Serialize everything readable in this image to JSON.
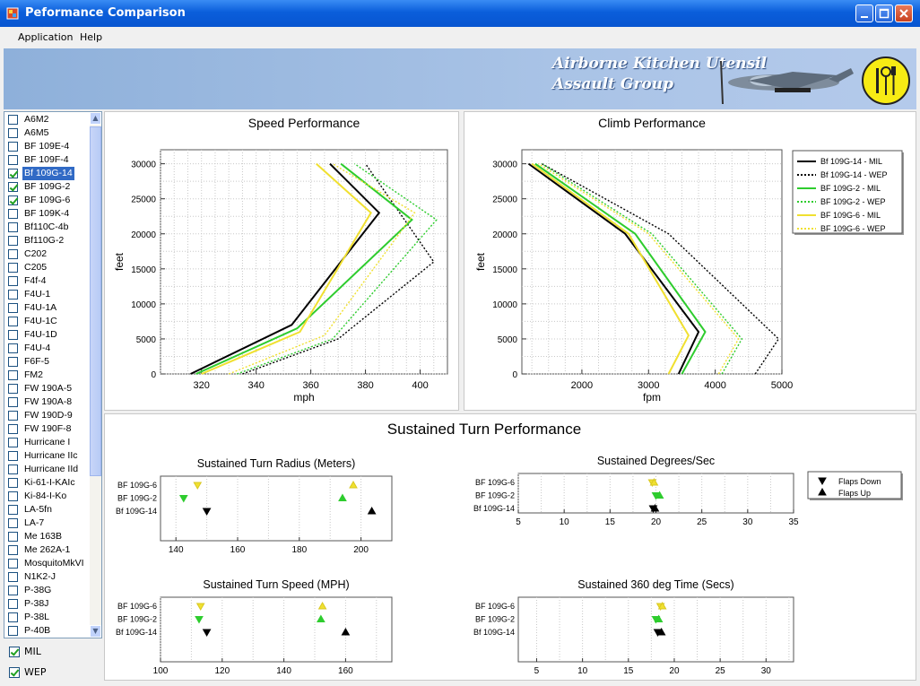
{
  "window": {
    "title": "Peformance Comparison"
  },
  "menu": {
    "items": [
      "Application",
      "Help"
    ]
  },
  "banner": {
    "line1": "Airborne Kitchen Utensil",
    "line2": "Assault Group"
  },
  "aircraft_list": [
    {
      "name": "A6M2",
      "checked": false
    },
    {
      "name": "A6M5",
      "checked": false
    },
    {
      "name": "BF 109E-4",
      "checked": false
    },
    {
      "name": "BF 109F-4",
      "checked": false
    },
    {
      "name": "Bf 109G-14",
      "checked": true,
      "selected": true
    },
    {
      "name": "BF 109G-2",
      "checked": true
    },
    {
      "name": "BF 109G-6",
      "checked": true
    },
    {
      "name": "BF 109K-4",
      "checked": false
    },
    {
      "name": "Bf110C-4b",
      "checked": false
    },
    {
      "name": "Bf110G-2",
      "checked": false
    },
    {
      "name": "C202",
      "checked": false
    },
    {
      "name": "C205",
      "checked": false
    },
    {
      "name": "F4f-4",
      "checked": false
    },
    {
      "name": "F4U-1",
      "checked": false
    },
    {
      "name": "F4U-1A",
      "checked": false
    },
    {
      "name": "F4U-1C",
      "checked": false
    },
    {
      "name": "F4U-1D",
      "checked": false
    },
    {
      "name": "F4U-4",
      "checked": false
    },
    {
      "name": "F6F-5",
      "checked": false
    },
    {
      "name": "FM2",
      "checked": false
    },
    {
      "name": "FW 190A-5",
      "checked": false
    },
    {
      "name": "FW 190A-8",
      "checked": false
    },
    {
      "name": "FW 190D-9",
      "checked": false
    },
    {
      "name": "FW 190F-8",
      "checked": false
    },
    {
      "name": "Hurricane I",
      "checked": false
    },
    {
      "name": "Hurricane IIc",
      "checked": false
    },
    {
      "name": "Hurricane IId",
      "checked": false
    },
    {
      "name": "Ki-61-I-KAIc",
      "checked": false
    },
    {
      "name": "Ki-84-I-Ko",
      "checked": false
    },
    {
      "name": "LA-5fn",
      "checked": false
    },
    {
      "name": "LA-7",
      "checked": false
    },
    {
      "name": "Me 163B",
      "checked": false
    },
    {
      "name": "Me 262A-1",
      "checked": false
    },
    {
      "name": "MosquitoMkVI",
      "checked": false
    },
    {
      "name": "N1K2-J",
      "checked": false
    },
    {
      "name": "P-38G",
      "checked": false
    },
    {
      "name": "P-38J",
      "checked": false
    },
    {
      "name": "P-38L",
      "checked": false
    },
    {
      "name": "P-40B",
      "checked": false
    }
  ],
  "options": {
    "mil": {
      "label": "MIL",
      "checked": true
    },
    "wep": {
      "label": "WEP",
      "checked": true
    }
  },
  "colors": {
    "g14": "#000000",
    "g2": "#2ECC2E",
    "g6": "#F0E030",
    "title_bar": "#0A5EDB",
    "selection": "#316AC5"
  },
  "chart_data": [
    {
      "id": "speed",
      "type": "line",
      "title": "Speed Performance",
      "xlabel": "mph",
      "ylabel": "feet",
      "xlim": [
        305,
        410
      ],
      "ylim": [
        0,
        32000
      ],
      "xticks": [
        320,
        340,
        360,
        380,
        400
      ],
      "yticks": [
        0,
        5000,
        10000,
        15000,
        20000,
        25000,
        30000
      ],
      "series": [
        {
          "name": "Bf 109G-14 - MIL",
          "color": "#000000",
          "style": "solid",
          "x": [
            316,
            353,
            385,
            367
          ],
          "y": [
            0,
            7000,
            23000,
            30000
          ]
        },
        {
          "name": "Bf 109G-14 - WEP",
          "color": "#000000",
          "style": "dotted",
          "x": [
            335,
            370,
            405,
            380
          ],
          "y": [
            0,
            5000,
            16000,
            30000
          ]
        },
        {
          "name": "BF 109G-2 - MIL",
          "color": "#2ECC2E",
          "style": "solid",
          "x": [
            318,
            355,
            397,
            371
          ],
          "y": [
            0,
            6500,
            22000,
            30000
          ]
        },
        {
          "name": "BF 109G-2 - WEP",
          "color": "#2ECC2E",
          "style": "dotted",
          "x": [
            333,
            368,
            406,
            376
          ],
          "y": [
            0,
            5000,
            22000,
            30000
          ]
        },
        {
          "name": "BF 109G-6 - MIL",
          "color": "#F0E030",
          "style": "solid",
          "x": [
            320,
            356,
            382,
            362
          ],
          "y": [
            0,
            6000,
            23000,
            30000
          ]
        },
        {
          "name": "BF 109G-6 - WEP",
          "color": "#F0E030",
          "style": "dotted",
          "x": [
            330,
            365,
            398,
            368
          ],
          "y": [
            0,
            5500,
            23000,
            30000
          ]
        }
      ]
    },
    {
      "id": "climb",
      "type": "line",
      "title": "Climb Performance",
      "xlabel": "fpm",
      "ylabel": "feet",
      "xlim": [
        1100,
        5000
      ],
      "ylim": [
        0,
        32000
      ],
      "xticks": [
        2000,
        3000,
        4000,
        5000
      ],
      "yticks": [
        0,
        5000,
        10000,
        15000,
        20000,
        25000,
        30000
      ],
      "legend": {
        "position": "right"
      },
      "series": [
        {
          "name": "Bf 109G-14 - MIL",
          "color": "#000000",
          "style": "solid",
          "x": [
            3450,
            3750,
            2650,
            1200
          ],
          "y": [
            0,
            6000,
            20000,
            30000
          ]
        },
        {
          "name": "Bf 109G-14 - WEP",
          "color": "#000000",
          "style": "dotted",
          "x": [
            4600,
            4950,
            3300,
            1400
          ],
          "y": [
            0,
            5000,
            20000,
            30000
          ]
        },
        {
          "name": "BF 109G-2 - MIL",
          "color": "#2ECC2E",
          "style": "solid",
          "x": [
            3500,
            3850,
            2800,
            1300
          ],
          "y": [
            0,
            6000,
            20000,
            30000
          ]
        },
        {
          "name": "BF 109G-2 - WEP",
          "color": "#2ECC2E",
          "style": "dotted",
          "x": [
            4100,
            4400,
            3050,
            1400
          ],
          "y": [
            0,
            5000,
            20000,
            30000
          ]
        },
        {
          "name": "BF 109G-6 - MIL",
          "color": "#F0E030",
          "style": "solid",
          "x": [
            3300,
            3600,
            2700,
            1250
          ],
          "y": [
            0,
            5500,
            20000,
            30000
          ]
        },
        {
          "name": "BF 109G-6 - WEP",
          "color": "#F0E030",
          "style": "dotted",
          "x": [
            4050,
            4350,
            3000,
            1350
          ],
          "y": [
            0,
            5000,
            20000,
            30000
          ]
        }
      ]
    },
    {
      "id": "turn_radius",
      "type": "scatter",
      "title": "Sustained Turn Radius (Meters)",
      "xlim": [
        135,
        210
      ],
      "xticks": [
        140,
        160,
        180,
        200
      ],
      "categories": [
        "BF 109G-6",
        "BF 109G-2",
        "Bf 109G-14"
      ],
      "series": [
        {
          "name": "Flaps Down",
          "marker": "down",
          "colors": [
            "#F0E030",
            "#2ECC2E",
            "#000000"
          ],
          "values": [
            147,
            142.5,
            150
          ]
        },
        {
          "name": "Flaps Up",
          "marker": "up",
          "colors": [
            "#F0E030",
            "#2ECC2E",
            "#000000"
          ],
          "values": [
            197.5,
            194,
            203.5
          ]
        }
      ]
    },
    {
      "id": "deg_sec",
      "type": "scatter",
      "title": "Sustained Degrees/Sec",
      "xlim": [
        5,
        35
      ],
      "xticks": [
        5,
        10,
        15,
        20,
        25,
        30,
        35
      ],
      "categories": [
        "BF 109G-6",
        "BF 109G-2",
        "Bf 109G-14"
      ],
      "series": [
        {
          "name": "Flaps Down",
          "marker": "down",
          "colors": [
            "#F0E030",
            "#2ECC2E",
            "#000000"
          ],
          "values": [
            19.6,
            20.0,
            19.7
          ]
        },
        {
          "name": "Flaps Up",
          "marker": "up",
          "colors": [
            "#F0E030",
            "#2ECC2E",
            "#000000"
          ],
          "values": [
            19.8,
            20.4,
            19.9
          ]
        }
      ]
    },
    {
      "id": "turn_speed",
      "type": "scatter",
      "title": "Sustained Turn Speed (MPH)",
      "xlim": [
        100,
        175
      ],
      "xticks": [
        100,
        120,
        140,
        160
      ],
      "categories": [
        "BF 109G-6",
        "BF 109G-2",
        "Bf 109G-14"
      ],
      "series": [
        {
          "name": "Flaps Down",
          "marker": "down",
          "colors": [
            "#F0E030",
            "#2ECC2E",
            "#000000"
          ],
          "values": [
            113,
            112.5,
            115
          ]
        },
        {
          "name": "Flaps Up",
          "marker": "up",
          "colors": [
            "#F0E030",
            "#2ECC2E",
            "#000000"
          ],
          "values": [
            152.5,
            152,
            160
          ]
        }
      ]
    },
    {
      "id": "time360",
      "type": "scatter",
      "title": "Sustained 360 deg Time (Secs)",
      "xlim": [
        3,
        33
      ],
      "xticks": [
        5,
        10,
        15,
        20,
        25,
        30
      ],
      "categories": [
        "BF 109G-6",
        "BF 109G-2",
        "Bf 109G-14"
      ],
      "series": [
        {
          "name": "Flaps Down",
          "marker": "down",
          "colors": [
            "#F0E030",
            "#2ECC2E",
            "#000000"
          ],
          "values": [
            18.5,
            18.0,
            18.2
          ]
        },
        {
          "name": "Flaps Up",
          "marker": "up",
          "colors": [
            "#F0E030",
            "#2ECC2E",
            "#000000"
          ],
          "values": [
            18.7,
            18.3,
            18.6
          ]
        }
      ]
    }
  ],
  "turn_section": {
    "title": "Sustained Turn Performance",
    "legend": [
      "Flaps Down",
      "Flaps Up"
    ]
  }
}
